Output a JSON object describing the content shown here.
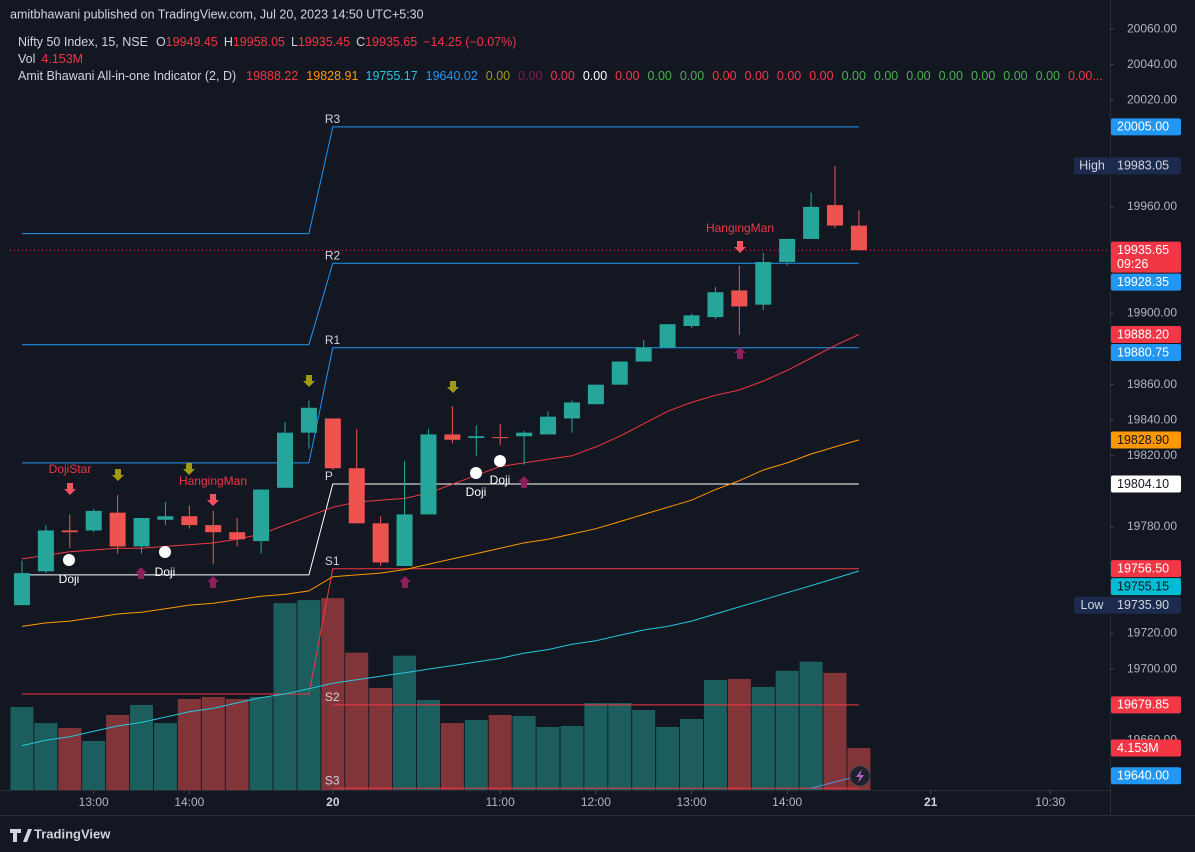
{
  "chart_data": {
    "type": "candlestick",
    "publisher": "amitbhawani published on TradingView.com, Jul 20, 2023 14:50 UTC+5:30",
    "symbol": "Nifty 50 Index, 15, NSE",
    "ohlc_header": [
      {
        "key": "O",
        "text": "19949.45"
      },
      {
        "key": "H",
        "text": "19958.05"
      },
      {
        "key": "L",
        "text": "19935.45"
      },
      {
        "key": "C",
        "text": "19935.65"
      }
    ],
    "change": "−14.25 (−0.07%)",
    "volume_header": {
      "key": "Vol",
      "text": "4.153M"
    },
    "indicator_name": "Amit Bhawani All-in-one Indicator (2, D)",
    "indicator_values": [
      {
        "text": "19888.22",
        "color": "#f23645"
      },
      {
        "text": "19828.91",
        "color": "#ff9800"
      },
      {
        "text": "19755.17",
        "color": "#26c6da"
      },
      {
        "text": "19640.02",
        "color": "#2196f3"
      },
      {
        "text": "0.00",
        "color": "#9e9a16"
      },
      {
        "text": "0.00",
        "color": "#7b1f52"
      },
      {
        "text": "0.00",
        "color": "#f23645"
      },
      {
        "text": "0.00",
        "color": "#ffffff"
      },
      {
        "text": "0.00",
        "color": "#f23645"
      },
      {
        "text": "0.00",
        "color": "#4caf50"
      },
      {
        "text": "0.00",
        "color": "#4caf50"
      },
      {
        "text": "0.00",
        "color": "#f23645"
      },
      {
        "text": "0.00",
        "color": "#f23645"
      },
      {
        "text": "0.00",
        "color": "#f23645"
      },
      {
        "text": "0.00",
        "color": "#f23645"
      },
      {
        "text": "0.00",
        "color": "#4caf50"
      },
      {
        "text": "0.00",
        "color": "#4caf50"
      },
      {
        "text": "0.00",
        "color": "#4caf50"
      },
      {
        "text": "0.00",
        "color": "#4caf50"
      },
      {
        "text": "0.00",
        "color": "#4caf50"
      },
      {
        "text": "0.00",
        "color": "#4caf50"
      },
      {
        "text": "0.00",
        "color": "#4caf50"
      },
      {
        "text": "0.00...",
        "color": "#f23645"
      }
    ],
    "xlim": [
      -0.5,
      45.5
    ],
    "xticks": [
      {
        "value": 3,
        "label": "13:00"
      },
      {
        "value": 7,
        "label": "14:00"
      },
      {
        "value": 13,
        "label": "20"
      },
      {
        "value": 20,
        "label": "11:00"
      },
      {
        "value": 24,
        "label": "12:00"
      },
      {
        "value": 28,
        "label": "13:00"
      },
      {
        "value": 32,
        "label": "14:00"
      },
      {
        "value": 38,
        "label": "21"
      },
      {
        "value": 43,
        "label": "10:30"
      }
    ],
    "ylim": [
      19632,
      20064
    ],
    "yticks": [
      {
        "value": 20060,
        "label": "20060.00"
      },
      {
        "value": 20040,
        "label": "20040.00"
      },
      {
        "value": 20020,
        "label": "20020.00"
      },
      {
        "value": 19960,
        "label": "19960.00"
      },
      {
        "value": 19900,
        "label": "19900.00"
      },
      {
        "value": 19860,
        "label": "19860.00"
      },
      {
        "value": 19840,
        "label": "19840.00"
      },
      {
        "value": 19820,
        "label": "19820.00"
      },
      {
        "value": 19780,
        "label": "19780.00"
      },
      {
        "value": 19720,
        "label": "19720.00"
      },
      {
        "value": 19700,
        "label": "19700.00"
      },
      {
        "value": 19660,
        "label": "19660.00"
      }
    ],
    "up_color": "#26a69a",
    "down_color": "#ef5350",
    "open": [
      19736,
      19755,
      19778,
      19778,
      19788,
      19769,
      19784,
      19786,
      19781,
      19777,
      19772,
      19802,
      19833,
      19841,
      19813,
      19782,
      19758,
      19787,
      19832,
      19830,
      19830.5,
      19831,
      19832,
      19841,
      19849,
      19860,
      19873,
      19881,
      19893,
      19898,
      19913,
      19905,
      19929,
      19942,
      19961,
      19949.45
    ],
    "high": [
      19761,
      19781,
      19787,
      19790,
      19798,
      19785,
      19794,
      19792,
      19789,
      19785,
      19801,
      19839,
      19851,
      19841,
      19835,
      19786,
      19817,
      19835,
      19848,
      19837,
      19838,
      19834,
      19845,
      19851,
      19860,
      19873,
      19885,
      19894,
      19900,
      19915,
      19927,
      19934,
      19942,
      19968,
      19983.05,
      19958.05
    ],
    "low": [
      19735.9,
      19754,
      19768,
      19777,
      19765,
      19765,
      19781,
      19779,
      19759,
      19769,
      19765,
      19802,
      19824,
      19812,
      19782,
      19758,
      19758,
      19787,
      19827,
      19820,
      19826,
      19815,
      19832,
      19833,
      19849,
      19860,
      19873,
      19881,
      19892,
      19897,
      19888,
      19902,
      19927,
      19942,
      19948,
      19935.45
    ],
    "close": [
      19754,
      19778,
      19777,
      19789,
      19769,
      19785,
      19786,
      19781,
      19777,
      19773,
      19801,
      19833,
      19847,
      19813,
      19782,
      19760,
      19787,
      19832,
      19829,
      19831,
      19830,
      19833,
      19842,
      19850,
      19860,
      19873,
      19881,
      19894,
      19899,
      19912,
      19904,
      19929,
      19942,
      19960,
      19949.5,
      19935.65
    ],
    "volume_lim": [
      0,
      20
    ],
    "volume": [
      8.22,
      6.63,
      6.14,
      4.85,
      7.43,
      8.42,
      6.63,
      9.01,
      9.21,
      9.01,
      9.21,
      18.5,
      18.8,
      19.0,
      13.6,
      10.1,
      13.3,
      8.91,
      6.63,
      6.93,
      7.43,
      7.33,
      6.24,
      6.34,
      8.61,
      8.61,
      7.92,
      6.24,
      7.03,
      10.9,
      11.0,
      10.2,
      11.8,
      12.7,
      11.6,
      4.153
    ],
    "volume_last_label": "4.153M",
    "lines": [
      {
        "color": "#f23645",
        "values": [
          19762,
          19764,
          19766,
          19767,
          19768,
          19768,
          19769,
          19770,
          19771,
          19773,
          19776,
          19781,
          19786,
          19791,
          19794,
          19795,
          19796,
          19799,
          19804,
          19809,
          19814,
          19816,
          19818,
          19820,
          19825,
          19831,
          19838,
          19845,
          19850,
          19854,
          19857,
          19862,
          19868,
          19875,
          19882,
          19888.22
        ]
      },
      {
        "color": "#ff9800",
        "values": [
          19724,
          19726,
          19727,
          19729,
          19731,
          19732,
          19734,
          19736,
          19737,
          19739,
          19741,
          19742,
          19744,
          19752,
          19753,
          19754,
          19756,
          19759,
          19762,
          19765,
          19768,
          19771,
          19773,
          19776,
          19779,
          19783,
          19787,
          19791,
          19795,
          19801,
          19806,
          19812,
          19816,
          19821,
          19825,
          19828.91
        ]
      },
      {
        "color": "#26c6da",
        "values": [
          19657,
          19660,
          19662,
          19665,
          19668,
          19670,
          19673,
          19676,
          19678,
          19681,
          19684,
          19686,
          19689,
          19692,
          19694,
          19696,
          19698,
          19700,
          19702,
          19704,
          19706,
          19709,
          19711,
          19714,
          19716,
          19719,
          19722,
          19724,
          19727,
          19731,
          19735,
          19739,
          19743,
          19747,
          19751,
          19755.17
        ]
      },
      {
        "color": "#5b8fd6",
        "values": [
          null,
          null,
          null,
          null,
          null,
          null,
          null,
          null,
          null,
          null,
          null,
          null,
          null,
          null,
          null,
          null,
          null,
          null,
          null,
          null,
          null,
          null,
          null,
          null,
          null,
          null,
          null,
          null,
          null,
          null,
          null,
          null,
          null,
          19633,
          19636.5,
          19640.02
        ]
      }
    ],
    "pivots": [
      {
        "name": "R3",
        "color": "#2196f3",
        "values": [
          19945,
          19945,
          19945,
          19945,
          19945,
          19945,
          19945,
          19945,
          19945,
          19945,
          19945,
          19945,
          19945,
          20005,
          20005,
          20005,
          20005,
          20005,
          20005,
          20005,
          20005,
          20005,
          20005,
          20005,
          20005,
          20005,
          20005,
          20005,
          20005,
          20005,
          20005,
          20005,
          20005,
          20005,
          20005,
          20005
        ]
      },
      {
        "name": "R2",
        "color": "#2196f3",
        "values": [
          19882.5,
          19882.5,
          19882.5,
          19882.5,
          19882.5,
          19882.5,
          19882.5,
          19882.5,
          19882.5,
          19882.5,
          19882.5,
          19882.5,
          19882.5,
          19928.35,
          19928.35,
          19928.35,
          19928.35,
          19928.35,
          19928.35,
          19928.35,
          19928.35,
          19928.35,
          19928.35,
          19928.35,
          19928.35,
          19928.35,
          19928.35,
          19928.35,
          19928.35,
          19928.35,
          19928.35,
          19928.35,
          19928.35,
          19928.35,
          19928.35,
          19928.35
        ]
      },
      {
        "name": "R1",
        "color": "#2196f3",
        "values": [
          19816,
          19816,
          19816,
          19816,
          19816,
          19816,
          19816,
          19816,
          19816,
          19816,
          19816,
          19816,
          19816,
          19880.75,
          19880.75,
          19880.75,
          19880.75,
          19880.75,
          19880.75,
          19880.75,
          19880.75,
          19880.75,
          19880.75,
          19880.75,
          19880.75,
          19880.75,
          19880.75,
          19880.75,
          19880.75,
          19880.75,
          19880.75,
          19880.75,
          19880.75,
          19880.75,
          19880.75,
          19880.75
        ]
      },
      {
        "name": "P",
        "color": "#ffffff",
        "values": [
          19753,
          19753,
          19753,
          19753,
          19753,
          19753,
          19753,
          19753,
          19753,
          19753,
          19753,
          19753,
          19753,
          19804.1,
          19804.1,
          19804.1,
          19804.1,
          19804.1,
          19804.1,
          19804.1,
          19804.1,
          19804.1,
          19804.1,
          19804.1,
          19804.1,
          19804.1,
          19804.1,
          19804.1,
          19804.1,
          19804.1,
          19804.1,
          19804.1,
          19804.1,
          19804.1,
          19804.1,
          19804.1
        ]
      },
      {
        "name": "S1",
        "color": "#f23645",
        "values": [
          19686,
          19686,
          19686,
          19686,
          19686,
          19686,
          19686,
          19686,
          19686,
          19686,
          19686,
          19686,
          19686,
          19756.5,
          19756.5,
          19756.5,
          19756.5,
          19756.5,
          19756.5,
          19756.5,
          19756.5,
          19756.5,
          19756.5,
          19756.5,
          19756.5,
          19756.5,
          19756.5,
          19756.5,
          19756.5,
          19756.5,
          19756.5,
          19756.5,
          19756.5,
          19756.5,
          19756.5,
          19756.5
        ]
      },
      {
        "name": "S2",
        "color": "#f23645",
        "values": [
          null,
          null,
          null,
          null,
          null,
          null,
          null,
          null,
          null,
          null,
          null,
          null,
          null,
          19679.85,
          19679.85,
          19679.85,
          19679.85,
          19679.85,
          19679.85,
          19679.85,
          19679.85,
          19679.85,
          19679.85,
          19679.85,
          19679.85,
          19679.85,
          19679.85,
          19679.85,
          19679.85,
          19679.85,
          19679.85,
          19679.85,
          19679.85,
          19679.85,
          19679.85,
          19679.85
        ]
      },
      {
        "name": "S3",
        "color": "#f23645",
        "values": [
          null,
          null,
          null,
          null,
          null,
          null,
          null,
          null,
          null,
          null,
          null,
          null,
          null,
          19633,
          19633,
          19633,
          19633,
          19633,
          19633,
          19633,
          19633,
          19633,
          19633,
          19633,
          19633,
          19633,
          19633,
          19633,
          19633,
          19633,
          19633,
          19633,
          19633,
          19633,
          19633,
          19633
        ]
      }
    ],
    "price_labels": [
      {
        "value": 20005,
        "label": "20005.00",
        "color": "#2196f3",
        "text_color": "#ffffff"
      },
      {
        "value": 19983.05,
        "label": "19983.05",
        "tag": "High",
        "color": "#1c2b4d",
        "text_color": "#d1d4dc"
      },
      {
        "value": 19935.65,
        "label": "19935.65",
        "sub": "09:26",
        "color": "#f23645",
        "text_color": "#ffffff"
      },
      {
        "value": 19928.35,
        "label": "19928.35",
        "color": "#2196f3",
        "text_color": "#ffffff"
      },
      {
        "value": 19888.2,
        "label": "19888.20",
        "color": "#f23645",
        "text_color": "#ffffff"
      },
      {
        "value": 19880.75,
        "label": "19880.75",
        "color": "#2196f3",
        "text_color": "#ffffff"
      },
      {
        "value": 19828.9,
        "label": "19828.90",
        "color": "#ff9800",
        "text_color": "#131722"
      },
      {
        "value": 19804.1,
        "label": "19804.10",
        "color": "#ffffff",
        "text_color": "#131722"
      },
      {
        "value": 19756.5,
        "label": "19756.50",
        "color": "#f23645",
        "text_color": "#ffffff"
      },
      {
        "value": 19755.15,
        "label": "19755.15",
        "color": "#00bcd4",
        "text_color": "#131722"
      },
      {
        "value": 19735.9,
        "label": "19735.90",
        "tag": "Low",
        "color": "#1c2b4d",
        "text_color": "#d1d4dc"
      },
      {
        "value": 19679.85,
        "label": "19679.85",
        "color": "#f23645",
        "text_color": "#ffffff"
      },
      {
        "value": 19640,
        "label": "19640.00",
        "color": "#2196f3",
        "text_color": "#ffffff"
      }
    ],
    "pattern_labels": [
      "DojiStar",
      "HangingMan",
      "HangingMan",
      "Doji",
      "Doji",
      "Doji",
      "Doji"
    ],
    "brand": "TradingView"
  }
}
